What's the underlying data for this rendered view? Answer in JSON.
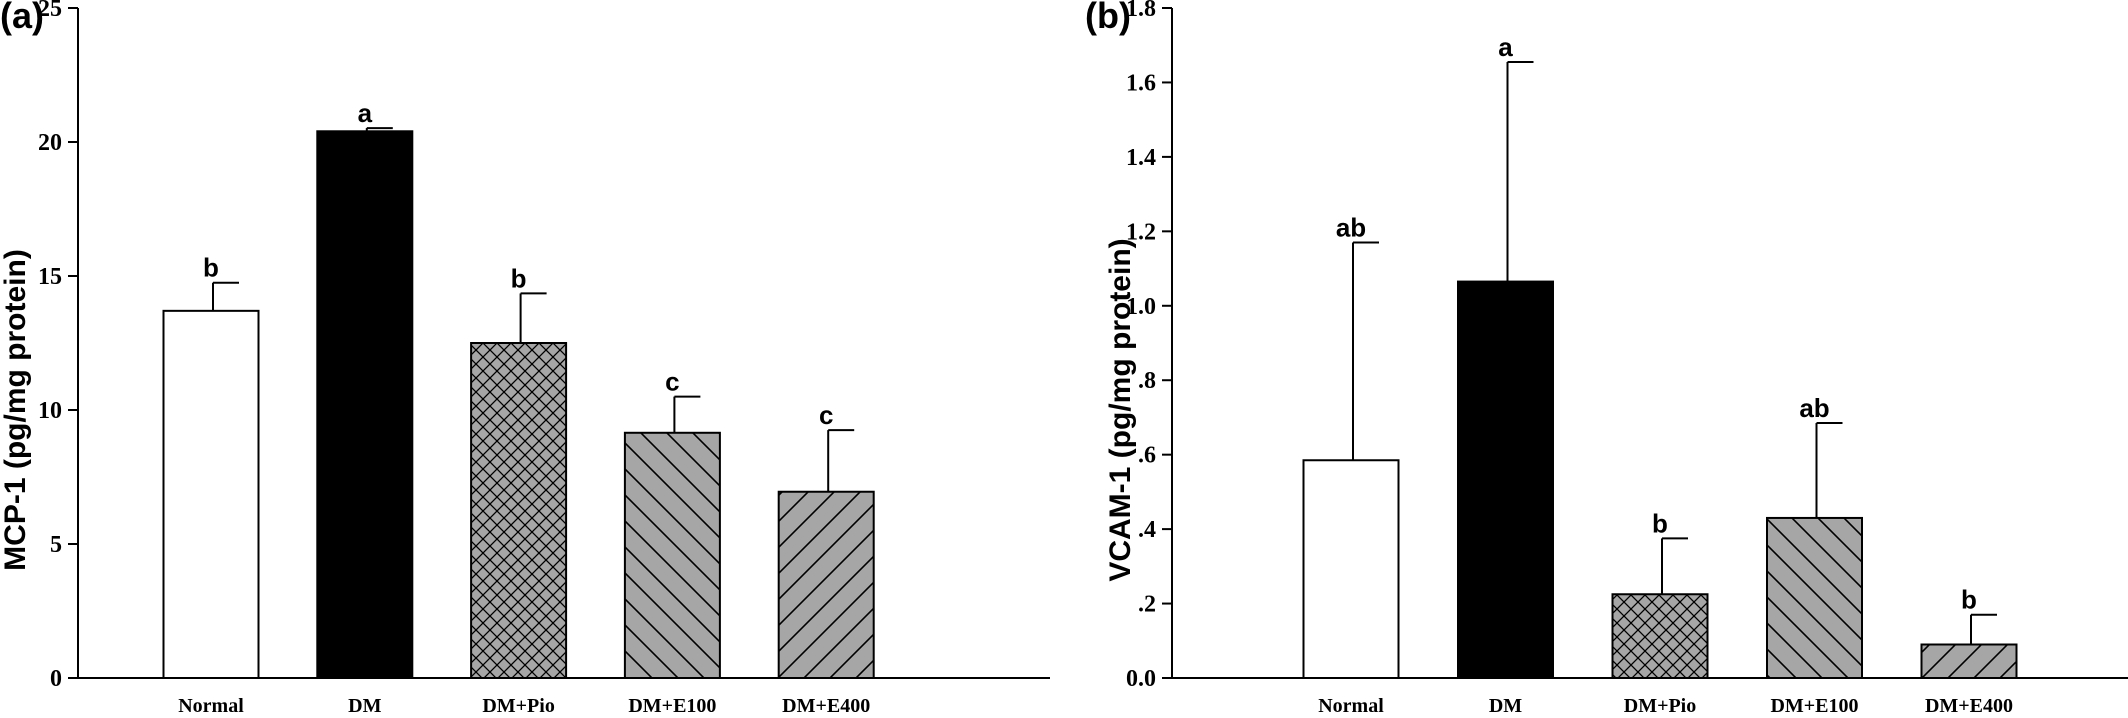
{
  "chart_data": [
    {
      "type": "bar",
      "panel_label": "(a)",
      "ylabel": "MCP-1 (pg/mg protein)",
      "xlabel": "",
      "ylim": [
        0,
        25
      ],
      "yticks": [
        0,
        5,
        10,
        15,
        20,
        25
      ],
      "ytick_labels": [
        "0",
        "5",
        "10",
        "15",
        "20",
        "25"
      ],
      "categories": [
        "Normal",
        "DM",
        "DM+Pio",
        "DM+E100",
        "DM+E400"
      ],
      "values": [
        13.7,
        20.4,
        12.5,
        9.15,
        6.95
      ],
      "errors": [
        1.05,
        0.12,
        1.85,
        1.35,
        2.3
      ],
      "significance": [
        "b",
        "a",
        "b",
        "c",
        "c"
      ],
      "fills": [
        "white",
        "black",
        "crosshatch",
        "diag-down",
        "diag-up"
      ]
    },
    {
      "type": "bar",
      "panel_label": "(b)",
      "ylabel": "VCAM-1 (pg/mg protein)",
      "xlabel": "",
      "ylim": [
        0,
        1.8
      ],
      "yticks": [
        0,
        0.2,
        0.4,
        0.6,
        0.8,
        1.0,
        1.2,
        1.4,
        1.6,
        1.8
      ],
      "ytick_labels": [
        "0.0",
        ".2",
        ".4",
        ".6",
        ".8",
        "1.0",
        "1.2",
        "1.4",
        "1.6",
        "1.8"
      ],
      "categories": [
        "Normal",
        "DM",
        "DM+Pio",
        "DM+E100",
        "DM+E400"
      ],
      "values": [
        0.585,
        1.065,
        0.225,
        0.43,
        0.09
      ],
      "errors": [
        0.585,
        0.59,
        0.15,
        0.255,
        0.08
      ],
      "significance": [
        "ab",
        "a",
        "b",
        "ab",
        "b"
      ],
      "fills": [
        "white",
        "black",
        "crosshatch",
        "diag-down",
        "diag-up"
      ]
    }
  ],
  "colors": {
    "bar_gray": "#a6a6a6",
    "black": "#000000",
    "white": "#ffffff"
  }
}
